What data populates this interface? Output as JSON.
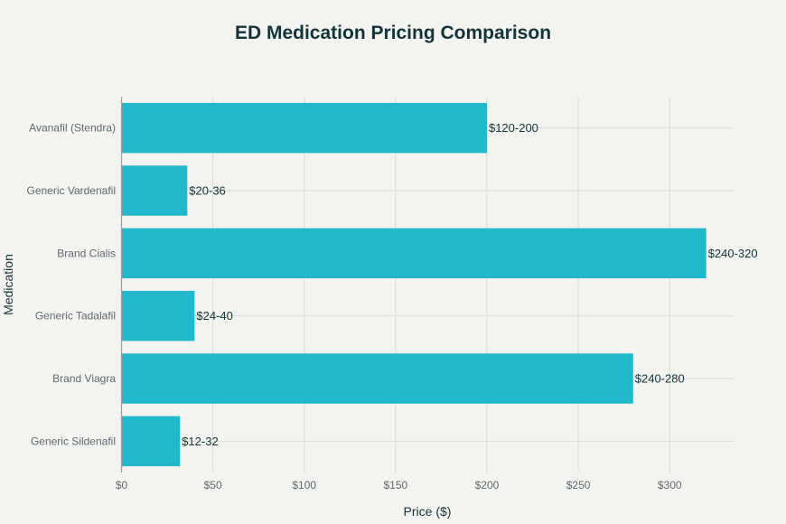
{
  "chart_data": {
    "type": "bar",
    "orientation": "horizontal",
    "title": "ED Medication Pricing Comparison",
    "xlabel": "Price ($)",
    "ylabel": "Medication",
    "xlim": [
      0,
      335
    ],
    "xticks": [
      0,
      50,
      100,
      150,
      200,
      250,
      300
    ],
    "xtick_labels": [
      "$0",
      "$50",
      "$100",
      "$150",
      "$200",
      "$250",
      "$300"
    ],
    "grid": true,
    "categories": [
      "Avanafil (Stendra)",
      "Generic Vardenafil",
      "Brand Cialis",
      "Generic Tadalafil",
      "Brand Viagra",
      "Generic Sildenafil"
    ],
    "values": [
      200,
      36,
      320,
      40,
      280,
      32
    ],
    "data_labels": [
      "$120-200",
      "$20-36",
      "$240-320",
      "$24-40",
      "$240-280",
      "$12-32"
    ],
    "bar_color": "#21b8cc"
  }
}
